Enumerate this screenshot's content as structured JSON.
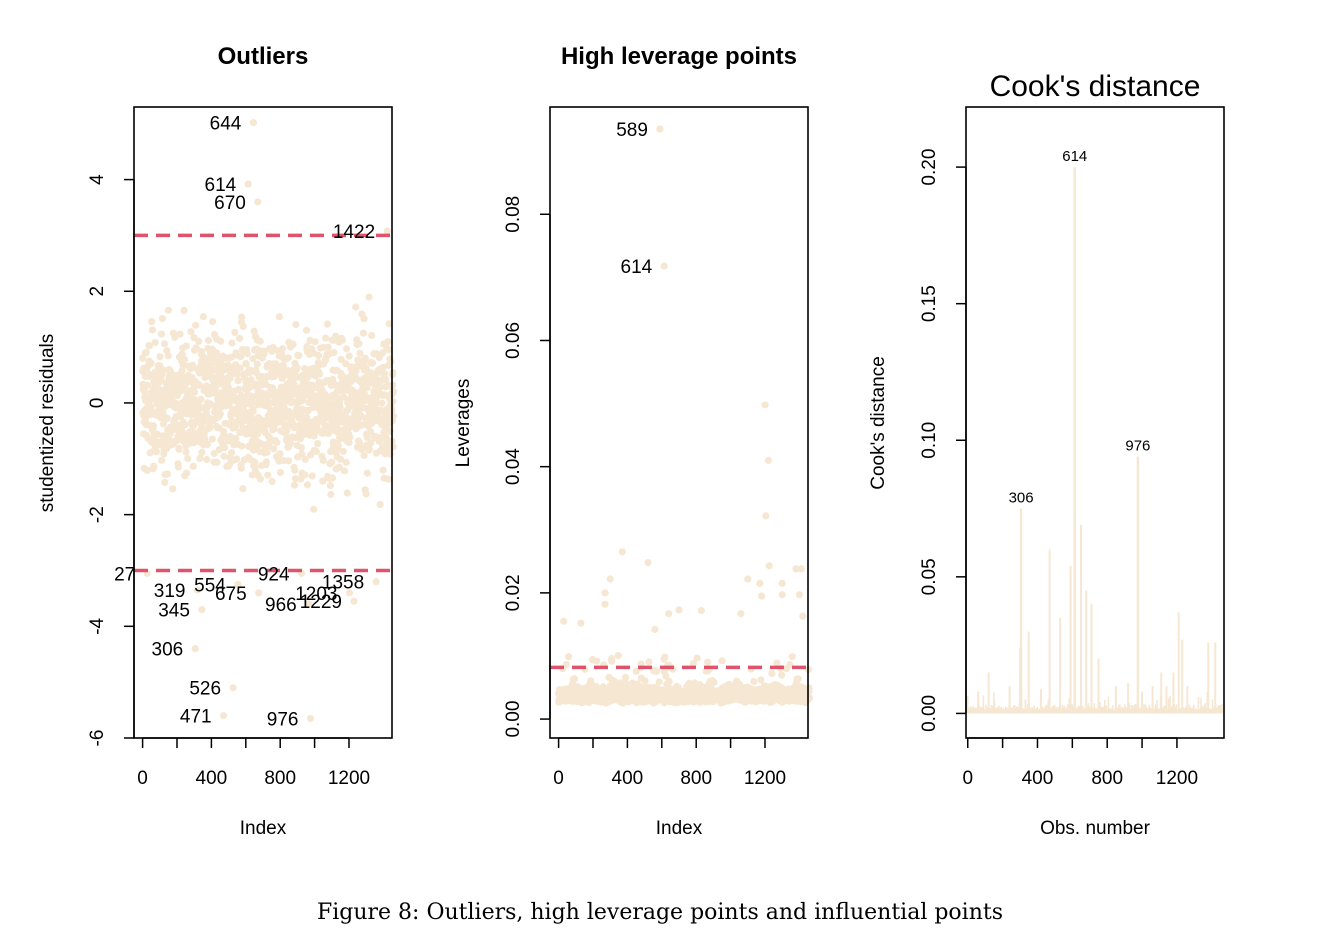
{
  "figure_caption": "Figure 8: Outliers, high leverage points and influential points",
  "colors": {
    "points": "#f6e7d3",
    "reference_line": "#df536b",
    "axis": "#000000"
  },
  "chart_data": [
    {
      "type": "scatter",
      "title": "Outliers",
      "xlabel": "Index",
      "ylabel": "studentized residuals",
      "xlim": [
        -50,
        1450
      ],
      "ylim": [
        -6,
        5.3
      ],
      "xticks": [
        0,
        400,
        800,
        1200
      ],
      "xtick_labels": [
        "0",
        "400",
        "800",
        "1200"
      ],
      "yticks": [
        -6,
        -4,
        -2,
        0,
        2,
        4
      ],
      "ytick_labels": [
        "-6",
        "-4",
        "-2",
        "0",
        "2",
        "4"
      ],
      "reference_lines": [
        3,
        -3
      ],
      "n_points": 1460,
      "bulk_range": [
        -3,
        3
      ],
      "labeled_points": [
        {
          "label": "644",
          "x": 644,
          "y": 5.02
        },
        {
          "label": "614",
          "x": 614,
          "y": 3.92
        },
        {
          "label": "670",
          "x": 670,
          "y": 3.6
        },
        {
          "label": "1422",
          "x": 1422,
          "y": 3.08
        },
        {
          "label": "27",
          "x": 27,
          "y": -3.05
        },
        {
          "label": "319",
          "x": 319,
          "y": -3.35
        },
        {
          "label": "554",
          "x": 554,
          "y": -3.25
        },
        {
          "label": "675",
          "x": 675,
          "y": -3.4
        },
        {
          "label": "924",
          "x": 924,
          "y": -3.05
        },
        {
          "label": "966",
          "x": 966,
          "y": -3.6
        },
        {
          "label": "1203",
          "x": 1203,
          "y": -3.4
        },
        {
          "label": "1229",
          "x": 1229,
          "y": -3.55
        },
        {
          "label": "1358",
          "x": 1358,
          "y": -3.2
        },
        {
          "label": "345",
          "x": 345,
          "y": -3.7
        },
        {
          "label": "306",
          "x": 306,
          "y": -4.4
        },
        {
          "label": "526",
          "x": 526,
          "y": -5.1
        },
        {
          "label": "471",
          "x": 471,
          "y": -5.6
        },
        {
          "label": "976",
          "x": 976,
          "y": -5.65
        }
      ]
    },
    {
      "type": "scatter",
      "title": "High leverage points",
      "xlabel": "Index",
      "ylabel": "Leverages",
      "xlim": [
        -50,
        1450
      ],
      "ylim": [
        -0.003,
        0.097
      ],
      "xticks": [
        0,
        400,
        800,
        1200
      ],
      "xtick_labels": [
        "0",
        "400",
        "800",
        "1200"
      ],
      "yticks": [
        0,
        0.02,
        0.04,
        0.06,
        0.08
      ],
      "ytick_labels": [
        "0.00",
        "0.02",
        "0.04",
        "0.06",
        "0.08"
      ],
      "reference_lines": [
        0.0082
      ],
      "n_points": 1460,
      "bulk_range": [
        0.001,
        0.008
      ],
      "labeled_points": [
        {
          "label": "589",
          "x": 589,
          "y": 0.0935
        },
        {
          "label": "614",
          "x": 614,
          "y": 0.0718
        }
      ],
      "other_high_points": [
        [
          1200,
          0.0498
        ],
        [
          1220,
          0.041
        ],
        [
          1205,
          0.0322
        ],
        [
          1225,
          0.0243
        ],
        [
          370,
          0.0265
        ],
        [
          520,
          0.0248
        ],
        [
          1100,
          0.0222
        ],
        [
          300,
          0.0222
        ],
        [
          1380,
          0.0238
        ],
        [
          1410,
          0.0238
        ],
        [
          270,
          0.02
        ],
        [
          1420,
          0.0163
        ],
        [
          270,
          0.0182
        ],
        [
          1180,
          0.0195
        ],
        [
          1300,
          0.0215
        ],
        [
          1170,
          0.0215
        ],
        [
          1300,
          0.0197
        ],
        [
          1400,
          0.0197
        ],
        [
          700,
          0.0173
        ],
        [
          640,
          0.0167
        ],
        [
          830,
          0.0172
        ],
        [
          1060,
          0.0167
        ],
        [
          130,
          0.0152
        ],
        [
          30,
          0.0155
        ],
        [
          560,
          0.0142
        ]
      ]
    },
    {
      "type": "bar",
      "title": "Cook's distance",
      "xlabel": "Obs. number",
      "ylabel": "Cook's distance",
      "xlim": [
        -10,
        1470
      ],
      "ylim": [
        -0.009,
        0.222
      ],
      "xticks": [
        0,
        400,
        800,
        1200
      ],
      "xtick_labels": [
        "0",
        "400",
        "800",
        "1200"
      ],
      "yticks": [
        0,
        0.05,
        0.1,
        0.15,
        0.2
      ],
      "ytick_labels": [
        "0.00",
        "0.05",
        "0.10",
        "0.15",
        "0.20"
      ],
      "n_obs": 1460,
      "labeled_points": [
        {
          "label": "306",
          "x": 306,
          "y": 0.075
        },
        {
          "label": "614",
          "x": 614,
          "y": 0.2
        },
        {
          "label": "976",
          "x": 976,
          "y": 0.094
        }
      ],
      "other_spikes": [
        [
          120,
          0.015
        ],
        [
          240,
          0.01
        ],
        [
          350,
          0.03
        ],
        [
          470,
          0.06
        ],
        [
          530,
          0.035
        ],
        [
          590,
          0.054
        ],
        [
          650,
          0.069
        ],
        [
          680,
          0.045
        ],
        [
          710,
          0.04
        ],
        [
          750,
          0.02
        ],
        [
          850,
          0.01
        ],
        [
          920,
          0.011
        ],
        [
          1060,
          0.01
        ],
        [
          1110,
          0.015
        ],
        [
          1140,
          0.01
        ],
        [
          1180,
          0.015
        ],
        [
          1210,
          0.037
        ],
        [
          1230,
          0.027
        ],
        [
          1260,
          0.01
        ],
        [
          1380,
          0.026
        ],
        [
          1420,
          0.026
        ],
        [
          60,
          0.008
        ],
        [
          420,
          0.009
        ],
        [
          300,
          0.024
        ],
        [
          1000,
          0.008
        ]
      ]
    }
  ]
}
